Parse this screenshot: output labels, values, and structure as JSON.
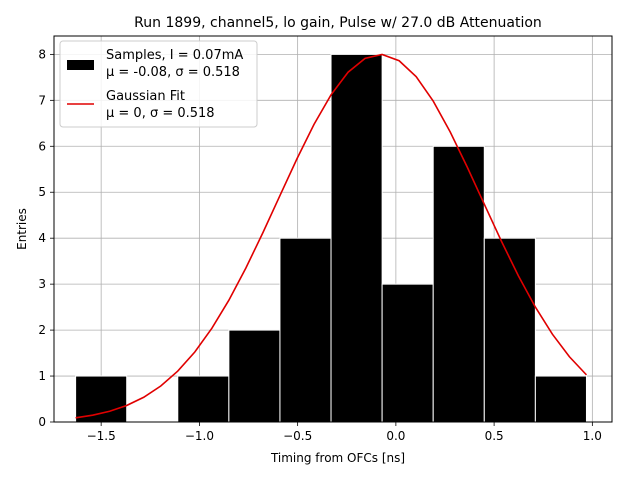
{
  "chart_data": {
    "type": "bar",
    "title": "Run 1899, channel5, lo gain, Pulse w/ 27.0 dB Attenuation",
    "xlabel": "Timing from OFCs [ns]",
    "ylabel": "Entries",
    "xlim": [
      -1.74,
      1.1
    ],
    "ylim": [
      0,
      8.4
    ],
    "xticks": [
      -1.5,
      -1.0,
      -0.5,
      0.0,
      0.5,
      1.0
    ],
    "xtick_labels": [
      "−1.5",
      "−1.0",
      "−0.5",
      "0.0",
      "0.5",
      "1.0"
    ],
    "yticks": [
      0,
      1,
      2,
      3,
      4,
      5,
      6,
      7,
      8
    ],
    "grid": true,
    "legend_position": "top-left",
    "histogram": {
      "name_line1": "Samples, I = 0.07mA",
      "name_line2": "μ = -0.08, σ = 0.518",
      "color": "#000000",
      "edge_color": "#ffffff",
      "bin_edges": [
        -1.63,
        -1.37,
        -1.11,
        -0.85,
        -0.59,
        -0.33,
        -0.07,
        0.19,
        0.45,
        0.71,
        0.97
      ],
      "counts": [
        1,
        0,
        1,
        2,
        4,
        8,
        3,
        6,
        4,
        1
      ]
    },
    "fit": {
      "name_line1": "Gaussian Fit",
      "name_line2": "μ = 0, σ = 0.518",
      "color": "#e00000",
      "mu": -0.08,
      "sigma": 0.518,
      "amplitude": 8.0,
      "x_range": [
        -1.63,
        0.97
      ]
    }
  }
}
